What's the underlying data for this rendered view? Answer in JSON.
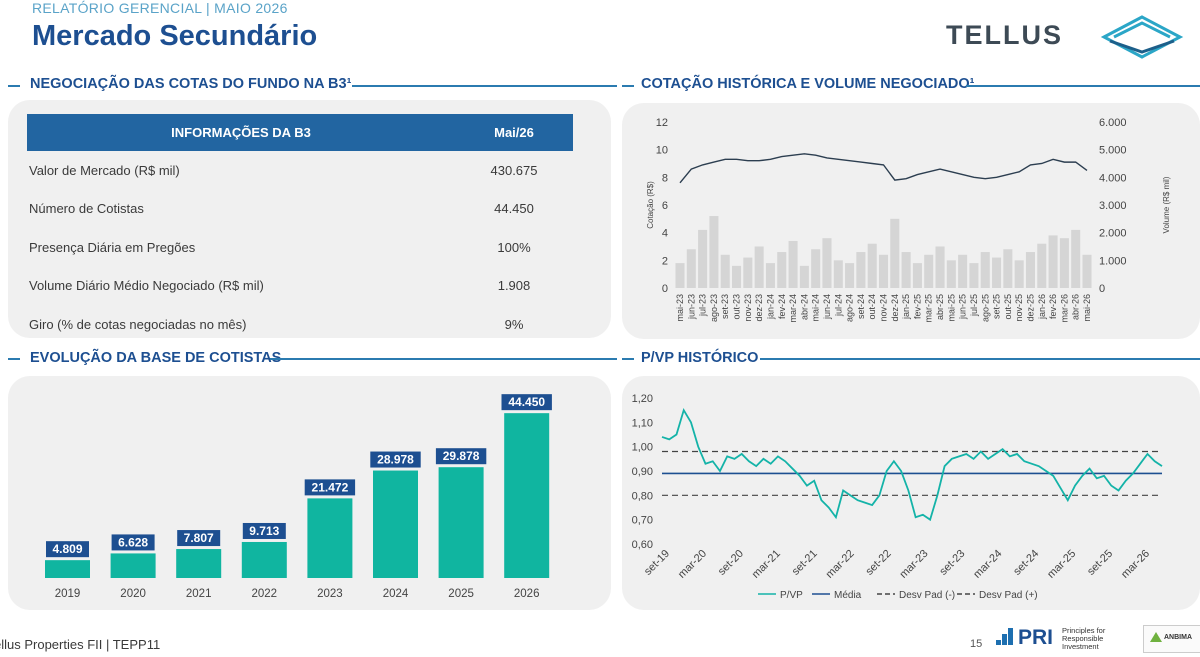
{
  "header": {
    "report_tag": "RELATÓRIO GERENCIAL | MAIO 2026",
    "title": "Mercado Secundário",
    "logo_text": "TELLUS"
  },
  "sections": {
    "trading": "NEGOCIAÇÃO DAS COTAS DO FUNDO NA B3¹",
    "price_volume": "COTAÇÃO HISTÓRICA E VOLUME NEGOCIADO¹",
    "holders": "EVOLUÇÃO DA BASE DE COTISTAS",
    "pvp": "P/VP HISTÓRICO"
  },
  "info_table": {
    "col1": "INFORMAÇÕES DA B3",
    "col2": "Mai/26",
    "rows": [
      {
        "label": "Valor de Mercado (R$ mil)",
        "value": "430.675"
      },
      {
        "label": "Número de Cotistas",
        "value": "44.450"
      },
      {
        "label": "Presença Diária em Pregões",
        "value": "100%"
      },
      {
        "label": "Volume Diário Médio Negociado (R$ mil)",
        "value": "1.908"
      },
      {
        "label": "Giro (% de cotas negociadas no mês)",
        "value": "9%"
      }
    ]
  },
  "chart_data": [
    {
      "type": "line",
      "y_left_label": "Cotação (R$)",
      "y_right_label": "Volume (R$ mil)",
      "y_left_ticks": [
        "12",
        "10",
        "8",
        "6",
        "4",
        "2",
        "0"
      ],
      "y_right_ticks": [
        "6.000",
        "5.000",
        "4.000",
        "3.000",
        "2.000",
        "1.000",
        "0"
      ],
      "ylim_left": [
        0,
        12
      ],
      "ylim_right": [
        0,
        6000
      ],
      "x": [
        "mai-23",
        "jun-23",
        "jul-23",
        "ago-23",
        "set-23",
        "out-23",
        "nov-23",
        "dez-23",
        "jan-24",
        "fev-24",
        "mar-24",
        "abr-24",
        "mai-24",
        "jun-24",
        "jul-24",
        "ago-24",
        "set-24",
        "out-24",
        "nov-24",
        "dez-24",
        "jan-25",
        "fev-25",
        "mar-25",
        "abr-25",
        "mai-25",
        "jun-25",
        "jul-25",
        "ago-25",
        "set-25",
        "out-25",
        "nov-25",
        "dez-25",
        "jan-26",
        "fev-26",
        "mar-26",
        "abr-26",
        "mai-26"
      ],
      "series": [
        {
          "name": "Cotação (R$)",
          "color": "#2c3e50",
          "values": [
            7.6,
            8.6,
            8.9,
            9.1,
            9.3,
            9.3,
            9.2,
            9.2,
            9.3,
            9.5,
            9.6,
            9.7,
            9.6,
            9.4,
            9.3,
            9.2,
            9.1,
            9.0,
            8.9,
            7.8,
            7.9,
            8.2,
            8.4,
            8.6,
            8.4,
            8.2,
            8.0,
            7.9,
            8.0,
            8.2,
            8.4,
            8.9,
            9.0,
            9.3,
            9.1,
            9.1,
            8.5
          ]
        },
        {
          "name": "Volume (R$ mil)",
          "color": "#d2d2d2",
          "values": [
            900,
            1400,
            2100,
            2600,
            1200,
            800,
            1100,
            1500,
            900,
            1300,
            1700,
            800,
            1400,
            1800,
            1000,
            900,
            1300,
            1600,
            1200,
            2500,
            1300,
            900,
            1200,
            1500,
            1000,
            1200,
            900,
            1300,
            1100,
            1400,
            1000,
            1300,
            1600,
            1900,
            1800,
            2100,
            1200
          ]
        }
      ]
    },
    {
      "type": "bar",
      "categories": [
        "2019",
        "2020",
        "2021",
        "2022",
        "2023",
        "2024",
        "2025",
        "2026"
      ],
      "values": [
        4809,
        6628,
        7807,
        9713,
        21472,
        28978,
        29878,
        44450
      ],
      "value_labels": [
        "4.809",
        "6.628",
        "7.807",
        "9.713",
        "21.472",
        "28.978",
        "29.878",
        "44.450"
      ],
      "bar_color": "#10b5a0",
      "label_color": "#1d4f91",
      "ylim": [
        0,
        48000
      ]
    },
    {
      "type": "line",
      "y_ticks": [
        "1,20",
        "1,10",
        "1,00",
        "0,90",
        "0,80",
        "0,70",
        "0,60"
      ],
      "ylim": [
        0.6,
        1.2
      ],
      "x_ticks": [
        "set-19",
        "mar-20",
        "set-20",
        "mar-21",
        "set-21",
        "mar-22",
        "set-22",
        "mar-23",
        "set-23",
        "mar-24",
        "set-24",
        "mar-25",
        "set-25",
        "mar-26"
      ],
      "legend": [
        "P/VP",
        "Média",
        "Desv Pad (-)",
        "Desv Pad (+)"
      ],
      "legend_position": "bottom",
      "mean": 0.89,
      "std_minus": 0.8,
      "std_plus": 0.98,
      "series": [
        {
          "name": "P/VP",
          "color": "#14b3a8",
          "values": [
            1.04,
            1.03,
            1.05,
            1.15,
            1.1,
            1.0,
            0.93,
            0.94,
            0.9,
            0.96,
            0.95,
            0.97,
            0.94,
            0.92,
            0.95,
            0.93,
            0.96,
            0.94,
            0.91,
            0.88,
            0.84,
            0.86,
            0.78,
            0.75,
            0.71,
            0.82,
            0.8,
            0.78,
            0.77,
            0.76,
            0.8,
            0.9,
            0.94,
            0.9,
            0.82,
            0.71,
            0.72,
            0.7,
            0.8,
            0.92,
            0.95,
            0.96,
            0.97,
            0.95,
            0.98,
            0.95,
            0.97,
            0.99,
            0.96,
            0.97,
            0.94,
            0.93,
            0.92,
            0.9,
            0.88,
            0.83,
            0.78,
            0.84,
            0.88,
            0.91,
            0.87,
            0.88,
            0.84,
            0.82,
            0.86,
            0.89,
            0.93,
            0.97,
            0.94,
            0.92
          ]
        },
        {
          "name": "Média",
          "color": "#1d4f91"
        },
        {
          "name": "Desv Pad (-)",
          "color": "#444444"
        },
        {
          "name": "Desv Pad (+)",
          "color": "#444444"
        }
      ]
    }
  ],
  "footer": {
    "left": "ellus Properties FII | TEPP11",
    "page": "15",
    "pri": "PRI",
    "pri_text": "Principles for Responsible Investment",
    "anbima": "ANBIMA"
  }
}
